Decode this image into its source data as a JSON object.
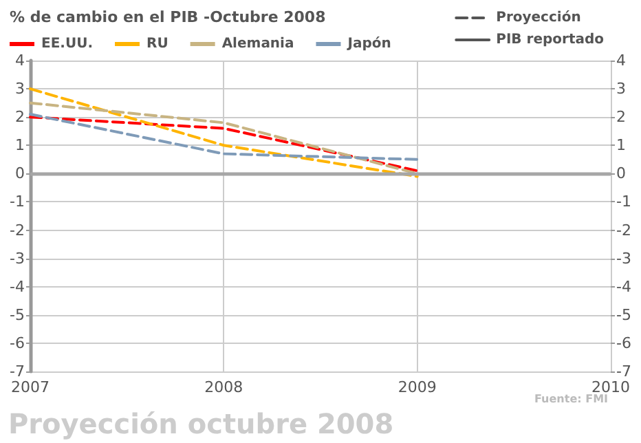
{
  "chart_data": {
    "type": "line",
    "title": "% de cambio en el PIB -Octubre 2008",
    "x": [
      2007,
      2008,
      2009
    ],
    "series": [
      {
        "name": "EE.UU.",
        "color": "#ff0000",
        "values": [
          2.0,
          1.6,
          0.1
        ],
        "line_style": "dashed"
      },
      {
        "name": "RU",
        "color": "#ffb400",
        "values": [
          3.0,
          1.0,
          -0.1
        ],
        "line_style": "dashed"
      },
      {
        "name": "Alemania",
        "color": "#c8b482",
        "values": [
          2.5,
          1.8,
          0.0
        ],
        "line_style": "dashed"
      },
      {
        "name": "Japón",
        "color": "#7f9bb8",
        "values": [
          2.1,
          0.7,
          0.5
        ],
        "line_style": "dashed"
      },
      {
        "name": "Proyección",
        "color": "#555555",
        "values": [
          null,
          null,
          null
        ],
        "line_style": "dashed"
      },
      {
        "name": "PIB reportado",
        "color": "#555555",
        "values": [
          null,
          null,
          null
        ],
        "line_style": "solid"
      }
    ],
    "xlim": [
      2007,
      2010
    ],
    "xticks": [
      2007,
      2008,
      2009,
      2010
    ],
    "ylim": [
      -7,
      4
    ],
    "yticks": [
      -7,
      -6,
      -5,
      -4,
      -3,
      -2,
      -1,
      0,
      1,
      2,
      3,
      4
    ],
    "y2lim": [
      -7,
      4
    ],
    "y2ticks": [
      -7,
      -6,
      -5,
      -4,
      -3,
      -2,
      -1,
      0,
      1,
      2,
      3,
      4
    ],
    "ref_lines": [
      {
        "axis": "y",
        "value": 0,
        "color": "#a6a6a6",
        "line_style": "solid"
      }
    ],
    "grid": true,
    "legend": "top",
    "marker": "none",
    "annotations": [
      "Proyección octubre 2008",
      "Fuente: FMI"
    ]
  }
}
